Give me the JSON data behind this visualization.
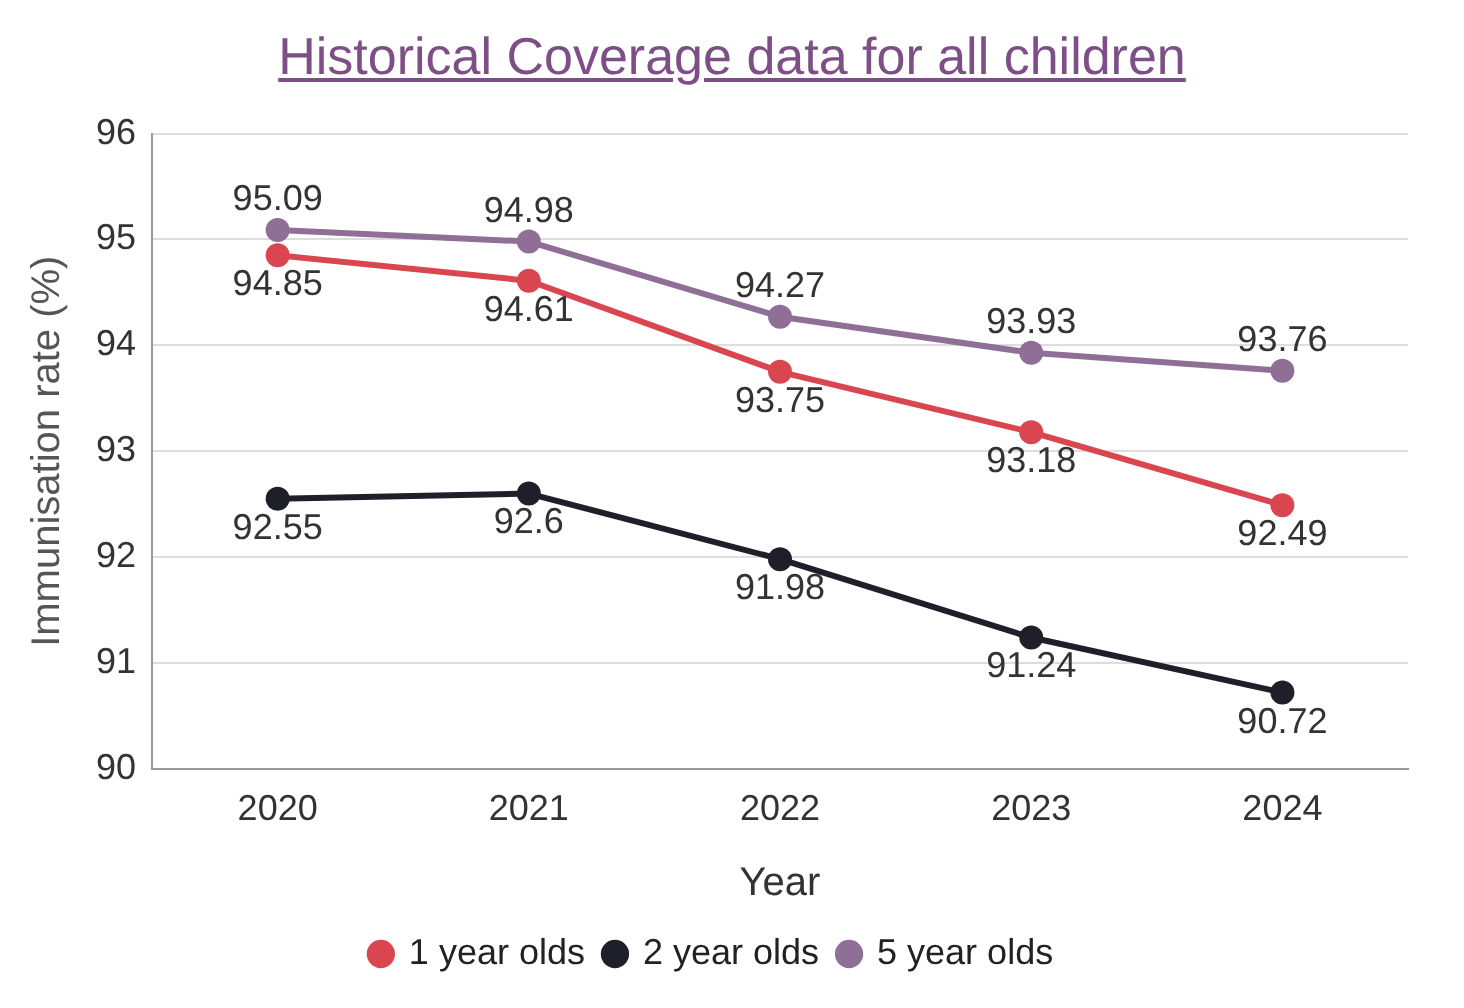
{
  "chart_data": {
    "type": "line",
    "title": "Historical Coverage data for all children",
    "xlabel": "Year",
    "ylabel": "Immunisation rate (%)",
    "categories": [
      "2020",
      "2021",
      "2022",
      "2023",
      "2024"
    ],
    "series": [
      {
        "name": "1 year olds",
        "color": "#d9464f",
        "values": [
          94.85,
          94.61,
          93.75,
          93.18,
          92.49
        ]
      },
      {
        "name": "2 year olds",
        "color": "#1f1f2a",
        "values": [
          92.55,
          92.6,
          91.98,
          91.24,
          90.72
        ]
      },
      {
        "name": "5 year olds",
        "color": "#8f6f96",
        "values": [
          95.09,
          94.98,
          94.27,
          93.93,
          93.76
        ]
      }
    ],
    "ylim": [
      90,
      96
    ],
    "yticks": [
      90,
      91,
      92,
      93,
      94,
      95,
      96
    ],
    "grid": "y",
    "legend": "bottom",
    "marker": "circle",
    "line_style": "solid",
    "data_labels": true
  }
}
